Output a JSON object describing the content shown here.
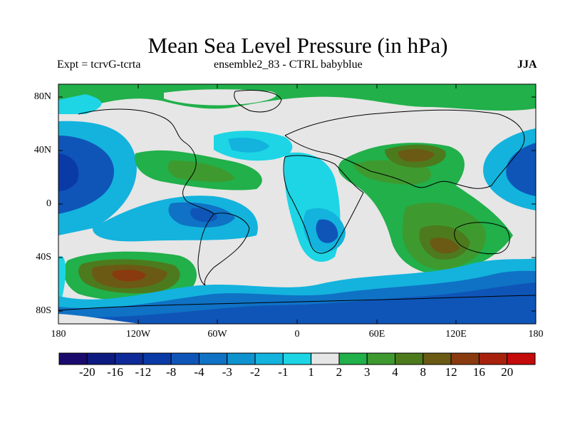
{
  "title": "Mean Sea Level Pressure (in hPa)",
  "subtitle_left": "Expt = tcrvG-tcrta",
  "subtitle_center": "ensemble2_83 - CTRL babyblue",
  "subtitle_right": "JJA",
  "lat_labels": [
    "80N",
    "40N",
    "0",
    "40S",
    "80S"
  ],
  "lon_labels": [
    "180",
    "120W",
    "60W",
    "0",
    "60E",
    "120E",
    "180"
  ],
  "colorbar": {
    "labels": [
      "-20",
      "-16",
      "-12",
      "-8",
      "-4",
      "-3",
      "-2",
      "-1",
      "1",
      "2",
      "3",
      "4",
      "8",
      "12",
      "16",
      "20"
    ],
    "colors": [
      "#1a0a6e",
      "#0d1a80",
      "#0e2a98",
      "#0a3aa6",
      "#0f55b8",
      "#0f72c5",
      "#0e93cf",
      "#13b3dd",
      "#1dd5e4",
      "#e6e6e6",
      "#21b04a",
      "#3e9a2f",
      "#4d7a1d",
      "#6b5a14",
      "#8a3a0f",
      "#a8210c",
      "#c40a0a"
    ]
  },
  "map_colors": {
    "neutral": "#e6e6e6",
    "neg1": "#1dd5e4",
    "neg2": "#13b3dd",
    "neg3": "#0e93cf",
    "neg4": "#0f72c5",
    "neg8": "#0f55b8",
    "neg12": "#0a3aa6",
    "pos1": "#21b04a",
    "pos2": "#3e9a2f",
    "pos3": "#4d7a1d",
    "pos4": "#6b5a14",
    "pos8": "#8a3a0f"
  }
}
